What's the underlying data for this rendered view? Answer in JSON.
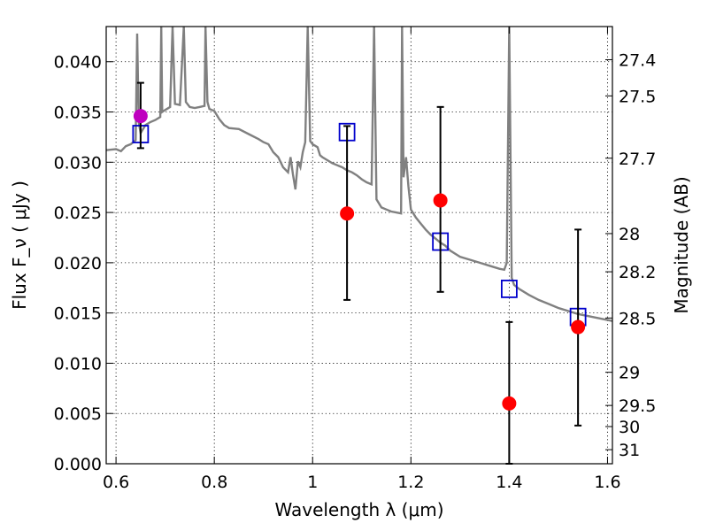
{
  "chart_data": {
    "type": "scatter",
    "xlabel": "Wavelength  λ (μm)",
    "ylabel_left": "Flux  F_ν  ( μJy )",
    "ylabel_right": "Magnitude (AB)",
    "xlim": [
      0.58,
      1.61
    ],
    "ylim": [
      0.0,
      0.0435
    ],
    "grid": true,
    "x_ticks": [
      0.6,
      0.8,
      1.0,
      1.2,
      1.4,
      1.6
    ],
    "x_tick_labels": [
      "0.6",
      "0.8",
      "1",
      "1.2",
      "1.4",
      "1.6"
    ],
    "y_ticks": [
      0.0,
      0.005,
      0.01,
      0.015,
      0.02,
      0.025,
      0.03,
      0.035,
      0.04
    ],
    "y_tick_labels": [
      "0.000",
      "0.005",
      "0.010",
      "0.015",
      "0.020",
      "0.025",
      "0.030",
      "0.035",
      "0.040"
    ],
    "right_ticks": [
      {
        "label": "27.4",
        "flux": 0.0402
      },
      {
        "label": "27.5",
        "flux": 0.0366
      },
      {
        "label": "27.7",
        "flux": 0.0304
      },
      {
        "label": "28",
        "flux": 0.0229
      },
      {
        "label": "28.2",
        "flux": 0.0191
      },
      {
        "label": "28.5",
        "flux": 0.0145
      },
      {
        "label": "29",
        "flux": 0.0091
      },
      {
        "label": "29.5",
        "flux": 0.0058
      },
      {
        "label": "30",
        "flux": 0.0037
      },
      {
        "label": "31",
        "flux": 0.0014
      }
    ],
    "series": [
      {
        "kind": "spectrum",
        "color": "#808080",
        "points": [
          [
            0.58,
            0.0312
          ],
          [
            0.6,
            0.0313
          ],
          [
            0.61,
            0.0311
          ],
          [
            0.62,
            0.0316
          ],
          [
            0.63,
            0.0318
          ],
          [
            0.64,
            0.0322
          ],
          [
            0.643,
            0.0428
          ],
          [
            0.646,
            0.034
          ],
          [
            0.65,
            0.0329
          ],
          [
            0.66,
            0.0337
          ],
          [
            0.67,
            0.034
          ],
          [
            0.68,
            0.0342
          ],
          [
            0.69,
            0.0345
          ],
          [
            0.692,
            0.0435
          ],
          [
            0.694,
            0.035
          ],
          [
            0.7,
            0.0352
          ],
          [
            0.71,
            0.0355
          ],
          [
            0.715,
            0.0435
          ],
          [
            0.72,
            0.0358
          ],
          [
            0.73,
            0.0357
          ],
          [
            0.738,
            0.0435
          ],
          [
            0.742,
            0.036
          ],
          [
            0.75,
            0.0355
          ],
          [
            0.76,
            0.0354
          ],
          [
            0.77,
            0.0355
          ],
          [
            0.78,
            0.0356
          ],
          [
            0.782,
            0.0435
          ],
          [
            0.786,
            0.036
          ],
          [
            0.79,
            0.0353
          ],
          [
            0.8,
            0.0351
          ],
          [
            0.81,
            0.0343
          ],
          [
            0.82,
            0.0337
          ],
          [
            0.83,
            0.0334
          ],
          [
            0.85,
            0.0333
          ],
          [
            0.87,
            0.0328
          ],
          [
            0.89,
            0.0323
          ],
          [
            0.9,
            0.032
          ],
          [
            0.91,
            0.0318
          ],
          [
            0.92,
            0.031
          ],
          [
            0.93,
            0.0305
          ],
          [
            0.94,
            0.0295
          ],
          [
            0.95,
            0.029
          ],
          [
            0.955,
            0.0305
          ],
          [
            0.96,
            0.0288
          ],
          [
            0.965,
            0.0273
          ],
          [
            0.97,
            0.0301
          ],
          [
            0.975,
            0.0295
          ],
          [
            0.98,
            0.031
          ],
          [
            0.985,
            0.032
          ],
          [
            0.99,
            0.0435
          ],
          [
            0.995,
            0.0321
          ],
          [
            1.0,
            0.0318
          ],
          [
            1.01,
            0.0315
          ],
          [
            1.015,
            0.0307
          ],
          [
            1.02,
            0.0305
          ],
          [
            1.03,
            0.0302
          ],
          [
            1.04,
            0.0299
          ],
          [
            1.05,
            0.0297
          ],
          [
            1.06,
            0.0295
          ],
          [
            1.07,
            0.0292
          ],
          [
            1.08,
            0.029
          ],
          [
            1.09,
            0.0287
          ],
          [
            1.1,
            0.0283
          ],
          [
            1.11,
            0.028
          ],
          [
            1.12,
            0.0278
          ],
          [
            1.125,
            0.0435
          ],
          [
            1.13,
            0.0263
          ],
          [
            1.14,
            0.0255
          ],
          [
            1.15,
            0.0253
          ],
          [
            1.16,
            0.0251
          ],
          [
            1.17,
            0.025
          ],
          [
            1.18,
            0.0249
          ],
          [
            1.182,
            0.0435
          ],
          [
            1.185,
            0.0285
          ],
          [
            1.19,
            0.0305
          ],
          [
            1.195,
            0.0276
          ],
          [
            1.2,
            0.0253
          ],
          [
            1.21,
            0.0245
          ],
          [
            1.22,
            0.0239
          ],
          [
            1.23,
            0.0233
          ],
          [
            1.24,
            0.0228
          ],
          [
            1.25,
            0.0224
          ],
          [
            1.26,
            0.022
          ],
          [
            1.27,
            0.0217
          ],
          [
            1.28,
            0.0212
          ],
          [
            1.3,
            0.0206
          ],
          [
            1.32,
            0.0203
          ],
          [
            1.34,
            0.02
          ],
          [
            1.36,
            0.0197
          ],
          [
            1.38,
            0.0194
          ],
          [
            1.39,
            0.0193
          ],
          [
            1.395,
            0.02
          ],
          [
            1.4,
            0.0435
          ],
          [
            1.405,
            0.0185
          ],
          [
            1.41,
            0.0178
          ],
          [
            1.42,
            0.0174
          ],
          [
            1.44,
            0.0168
          ],
          [
            1.46,
            0.0163
          ],
          [
            1.48,
            0.0159
          ],
          [
            1.5,
            0.0155
          ],
          [
            1.52,
            0.0152
          ],
          [
            1.54,
            0.0149
          ],
          [
            1.56,
            0.0147
          ],
          [
            1.58,
            0.0145
          ],
          [
            1.6,
            0.0143
          ],
          [
            1.61,
            0.0142
          ]
        ]
      },
      {
        "kind": "model-photometry",
        "marker": "open-square",
        "color": "#0000cc",
        "x": [
          0.65,
          1.07,
          1.26,
          1.4,
          1.54
        ],
        "y": [
          0.0328,
          0.033,
          0.0221,
          0.0174,
          0.0146
        ]
      },
      {
        "kind": "observed",
        "marker": "filled-circle",
        "color": "#ff0000",
        "x": [
          1.07,
          1.26,
          1.4,
          1.54
        ],
        "y": [
          0.0249,
          0.0262,
          0.006,
          0.0136
        ],
        "err_low": [
          0.0163,
          0.0171,
          0.0,
          0.0038
        ],
        "err_high": [
          0.0336,
          0.0355,
          0.0141,
          0.0233
        ]
      },
      {
        "kind": "observed",
        "marker": "filled-circle",
        "color": "#bf00bf",
        "x": [
          0.65
        ],
        "y": [
          0.0346
        ],
        "err_low": [
          0.0314
        ],
        "err_high": [
          0.0379
        ]
      }
    ]
  }
}
